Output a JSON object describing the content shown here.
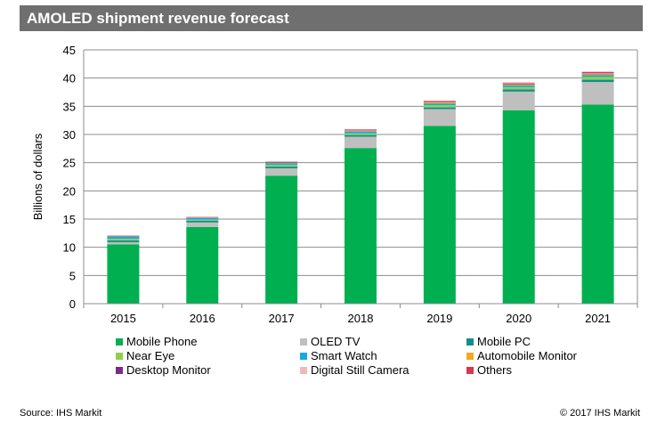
{
  "header": {
    "title": "AMOLED shipment revenue forecast"
  },
  "footer": {
    "source": "Source: IHS Markit",
    "copyright": "© 2017 IHS Markit"
  },
  "chart_data": {
    "type": "bar",
    "stacked": true,
    "title": "AMOLED shipment revenue forecast",
    "xlabel": "",
    "ylabel": "Billions of dollars",
    "ylim": [
      0,
      45
    ],
    "yticks": [
      0,
      5,
      10,
      15,
      20,
      25,
      30,
      35,
      40,
      45
    ],
    "grid": true,
    "legend_position": "bottom",
    "categories": [
      "2015",
      "2016",
      "2017",
      "2018",
      "2019",
      "2020",
      "2021"
    ],
    "series": [
      {
        "name": "Mobile Phone",
        "color": "#00b050",
        "values": [
          10.5,
          13.6,
          22.7,
          27.6,
          31.5,
          34.3,
          35.3
        ]
      },
      {
        "name": "OLED TV",
        "color": "#bfbfbf",
        "values": [
          0.4,
          0.8,
          1.3,
          2.0,
          3.0,
          3.3,
          4.0
        ]
      },
      {
        "name": "Mobile PC",
        "color": "#0f8f8a",
        "values": [
          0.3,
          0.3,
          0.3,
          0.3,
          0.3,
          0.4,
          0.4
        ]
      },
      {
        "name": "Near Eye",
        "color": "#8fcf4f",
        "values": [
          0.3,
          0.2,
          0.3,
          0.3,
          0.4,
          0.4,
          0.5
        ]
      },
      {
        "name": "Smart Watch",
        "color": "#17a9e0",
        "values": [
          0.4,
          0.3,
          0.3,
          0.3,
          0.3,
          0.3,
          0.3
        ]
      },
      {
        "name": "Automobile Monitor",
        "color": "#f5a623",
        "values": [
          0.05,
          0.05,
          0.1,
          0.1,
          0.2,
          0.2,
          0.2
        ]
      },
      {
        "name": "Desktop Monitor",
        "color": "#7b2a8a",
        "values": [
          0.05,
          0.05,
          0.1,
          0.1,
          0.1,
          0.1,
          0.1
        ]
      },
      {
        "name": "Digital Still Camera",
        "color": "#f4b6b6",
        "values": [
          0.05,
          0.05,
          0.05,
          0.1,
          0.1,
          0.1,
          0.1
        ]
      },
      {
        "name": "Others",
        "color": "#d9364f",
        "values": [
          0.05,
          0.05,
          0.05,
          0.1,
          0.1,
          0.1,
          0.2
        ]
      }
    ]
  }
}
